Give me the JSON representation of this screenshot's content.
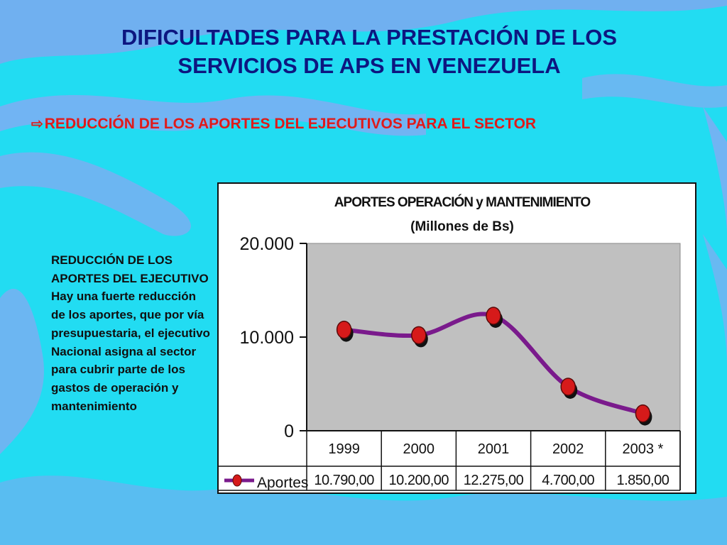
{
  "slide": {
    "title_line1": "DIFICULTADES PARA LA PRESTACIÓN DE LOS",
    "title_line2": "SERVICIOS DE APS EN VENEZUELA",
    "bullet_icon": "hollow-arrow-icon",
    "bullet_text": "REDUCCIÓN DE LOS APORTES DEL EJECUTIVOS PARA EL SECTOR",
    "side_text": "REDUCCIÓN DE LOS APORTES DEL EJECUTIVO  Hay una fuerte reducción de los aportes, que por vía presupuestaria, el ejecutivo Nacional asigna al sector para cubrir parte de los gastos de operación y mantenimiento",
    "colors": {
      "background": "#22dcf2",
      "title": "#0d1680",
      "bullet": "#e01a1a",
      "line": "#7a1a8c",
      "marker": "#d61a1a",
      "plot_area": "#c0c0c0"
    }
  },
  "chart_data": {
    "type": "line",
    "title": "APORTES OPERACIÓN  y MANTENIMIENTO",
    "subtitle": "(Millones de Bs)",
    "categories": [
      "1999",
      "2000",
      "2001",
      "2002",
      "2003 *"
    ],
    "series": [
      {
        "name": "Aportes",
        "values": [
          10790,
          10200,
          12275,
          4700,
          1850
        ],
        "value_labels": [
          "10.790,00",
          "10.200,00",
          "12.275,00",
          "4.700,00",
          "1.850,00"
        ]
      }
    ],
    "ylim": [
      0,
      20000
    ],
    "yticks": [
      0,
      10000,
      20000
    ],
    "ytick_labels": [
      "0",
      "10.000",
      "20.000"
    ],
    "grid": false,
    "legend": "data-table-left",
    "smooth": true
  }
}
